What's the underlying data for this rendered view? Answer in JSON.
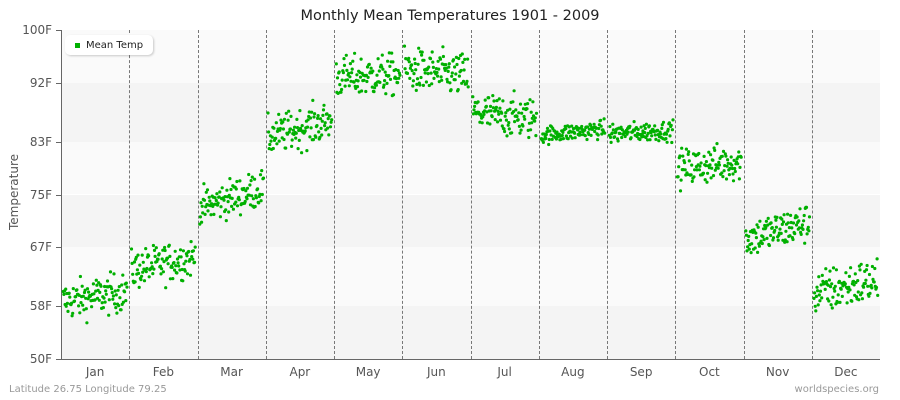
{
  "title": "Monthly Mean Temperatures 1901 - 2009",
  "legend": {
    "label": "Mean Temp",
    "color": "#00b000"
  },
  "footer": {
    "left": "Latitude 26.75 Longitude 79.25",
    "right": "worldspecies.org"
  },
  "colors": {
    "dot": "#00b000",
    "band_light": "#fafafa",
    "band_dark": "#f4f4f4"
  },
  "chart_data": {
    "type": "scatter",
    "title": "Monthly Mean Temperatures 1901 - 2009",
    "xlabel": "",
    "ylabel": "Temperature",
    "ylim": [
      50,
      100
    ],
    "yticks": [
      "50F",
      "58F",
      "67F",
      "75F",
      "83F",
      "92F",
      "100F"
    ],
    "ytick_values": [
      50,
      58,
      67,
      75,
      83,
      92,
      100
    ],
    "categories": [
      "Jan",
      "Feb",
      "Mar",
      "Apr",
      "May",
      "Jun",
      "Jul",
      "Aug",
      "Sep",
      "Oct",
      "Nov",
      "Dec"
    ],
    "legend": [
      "Mean Temp"
    ],
    "legend_position": "top-left",
    "grid": "alternating horizontal bands, dashed vertical month separators",
    "points_per_month": 109,
    "series": [
      {
        "name": "Mean Temp",
        "month_stats": [
          {
            "month": "Jan",
            "mean": 59.5,
            "min": 55.5,
            "max": 64.5,
            "trend": 1.5
          },
          {
            "month": "Feb",
            "mean": 64.5,
            "min": 60.5,
            "max": 69.5,
            "trend": 2.0
          },
          {
            "month": "Mar",
            "mean": 74.5,
            "min": 70.5,
            "max": 79.0,
            "trend": 3.0
          },
          {
            "month": "Apr",
            "mean": 85.0,
            "min": 80.5,
            "max": 89.5,
            "trend": 2.5
          },
          {
            "month": "May",
            "mean": 93.0,
            "min": 88.5,
            "max": 98.0,
            "trend": 0.5
          },
          {
            "month": "Jun",
            "mean": 93.5,
            "min": 88.5,
            "max": 98.5,
            "trend": -1.0
          },
          {
            "month": "Jul",
            "mean": 87.0,
            "min": 83.0,
            "max": 92.5,
            "trend": -1.0
          },
          {
            "month": "Aug",
            "mean": 84.5,
            "min": 82.5,
            "max": 86.5,
            "trend": 1.0
          },
          {
            "month": "Sep",
            "mean": 84.5,
            "min": 82.5,
            "max": 87.0,
            "trend": 0.5
          },
          {
            "month": "Oct",
            "mean": 79.5,
            "min": 75.5,
            "max": 84.0,
            "trend": 1.0
          },
          {
            "month": "Nov",
            "mean": 69.5,
            "min": 65.5,
            "max": 74.5,
            "trend": 2.5
          },
          {
            "month": "Dec",
            "mean": 61.0,
            "min": 56.0,
            "max": 66.5,
            "trend": 2.0
          }
        ]
      }
    ]
  }
}
